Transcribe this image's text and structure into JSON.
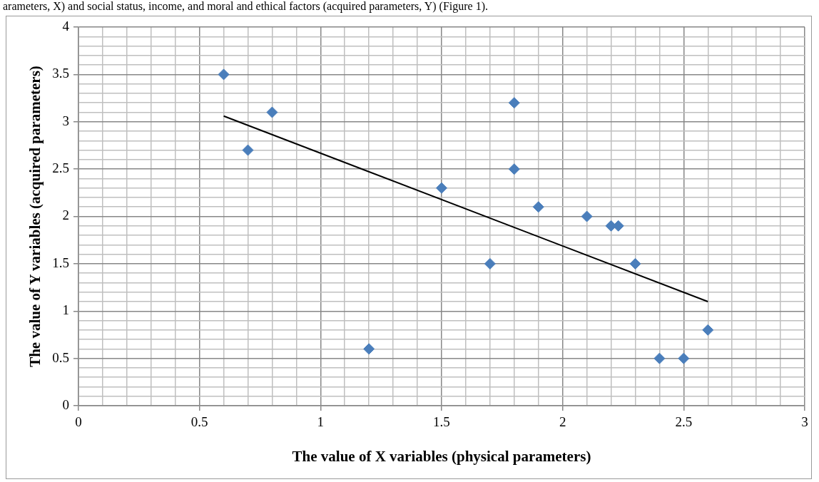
{
  "chart_data": {
    "type": "scatter",
    "xlabel": "The value of X variables (physical parameters)",
    "ylabel": "The value of Y variables (acquired parameters)",
    "annotations": [
      "arameters, X) and social status, income, and moral and ethical factors (acquired parameters, Y) (Figure 1)."
    ],
    "series": [
      {
        "type": "scatter",
        "color": "#4a7ebb",
        "marker": "diamond",
        "x": [
          0.6,
          0.7,
          0.8,
          1.2,
          1.5,
          1.7,
          1.8,
          1.8,
          1.9,
          2.1,
          2.2,
          2.23,
          2.3,
          2.4,
          2.5,
          2.6
        ],
        "values": [
          3.5,
          2.7,
          3.1,
          0.6,
          2.3,
          1.5,
          3.2,
          2.5,
          2.1,
          2.0,
          1.9,
          1.9,
          1.5,
          0.5,
          0.5,
          0.8
        ]
      },
      {
        "type": "line",
        "color": "#000000",
        "marker": "none",
        "x": [
          0.6,
          2.6
        ],
        "values": [
          3.06,
          1.1
        ]
      }
    ],
    "xlim": [
      0,
      3
    ],
    "xticks": [
      0,
      {
        "value": 0.1,
        "label": null
      },
      {
        "value": 0.2,
        "label": null
      },
      {
        "value": 0.3,
        "label": null
      },
      {
        "value": 0.4,
        "label": null
      },
      0.5,
      {
        "value": 0.6,
        "label": null
      },
      {
        "value": 0.7,
        "label": null
      },
      {
        "value": 0.8,
        "label": null
      },
      {
        "value": 0.9,
        "label": null
      },
      1,
      {
        "value": 1.1,
        "label": null
      },
      {
        "value": 1.2,
        "label": null
      },
      {
        "value": 1.3,
        "label": null
      },
      {
        "value": 1.4,
        "label": null
      },
      1.5,
      {
        "value": 1.6,
        "label": null
      },
      {
        "value": 1.7,
        "label": null
      },
      {
        "value": 1.8,
        "label": null
      },
      {
        "value": 1.9,
        "label": null
      },
      2,
      {
        "value": 2.1,
        "label": null
      },
      {
        "value": 2.2,
        "label": null
      },
      {
        "value": 2.3,
        "label": null
      },
      {
        "value": 2.4,
        "label": null
      },
      2.5,
      {
        "value": 2.6,
        "label": null
      },
      {
        "value": 2.7,
        "label": null
      },
      {
        "value": 2.8,
        "label": null
      },
      {
        "value": 2.9,
        "label": null
      },
      3
    ],
    "ylim": [
      0,
      4
    ],
    "yticks": [
      0,
      {
        "value": 0.1,
        "label": null
      },
      {
        "value": 0.2,
        "label": null
      },
      {
        "value": 0.3,
        "label": null
      },
      {
        "value": 0.4,
        "label": null
      },
      0.5,
      {
        "value": 0.6,
        "label": null
      },
      {
        "value": 0.7,
        "label": null
      },
      {
        "value": 0.8,
        "label": null
      },
      {
        "value": 0.9,
        "label": null
      },
      1,
      {
        "value": 1.1,
        "label": null
      },
      {
        "value": 1.2,
        "label": null
      },
      {
        "value": 1.3,
        "label": null
      },
      {
        "value": 1.4,
        "label": null
      },
      1.5,
      {
        "value": 1.6,
        "label": null
      },
      {
        "value": 1.7,
        "label": null
      },
      {
        "value": 1.8,
        "label": null
      },
      {
        "value": 1.9,
        "label": null
      },
      2,
      {
        "value": 2.1,
        "label": null
      },
      {
        "value": 2.2,
        "label": null
      },
      {
        "value": 2.3,
        "label": null
      },
      {
        "value": 2.4,
        "label": null
      },
      2.5,
      {
        "value": 2.6,
        "label": null
      },
      {
        "value": 2.7,
        "label": null
      },
      {
        "value": 2.8,
        "label": null
      },
      {
        "value": 2.9,
        "label": null
      },
      3,
      {
        "value": 3.1,
        "label": null
      },
      {
        "value": 3.2,
        "label": null
      },
      {
        "value": 3.3,
        "label": null
      },
      {
        "value": 3.4,
        "label": null
      },
      3.5,
      {
        "value": 3.6,
        "label": null
      },
      {
        "value": 3.7,
        "label": null
      },
      {
        "value": 3.8,
        "label": null
      },
      {
        "value": 3.9,
        "label": null
      },
      4
    ],
    "grid": true,
    "legend": false
  }
}
